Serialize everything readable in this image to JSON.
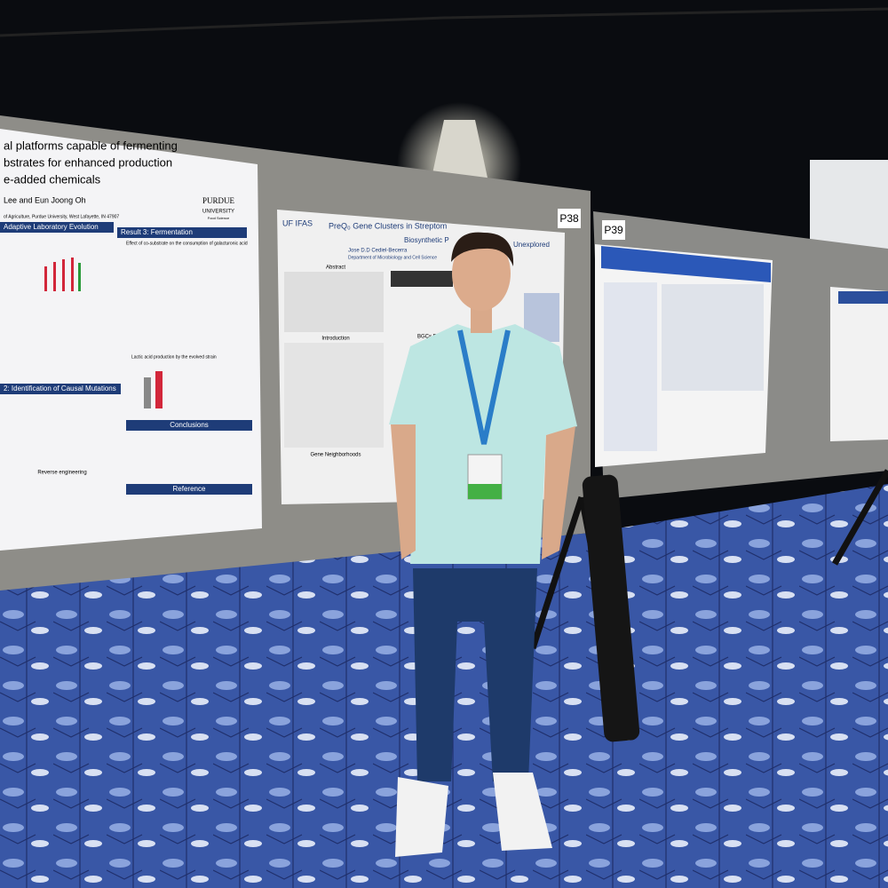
{
  "left_poster": {
    "title_lines": [
      "al platforms capable of fermenting",
      "bstrates for enhanced production",
      "e-added chemicals"
    ],
    "authors": "Lee and Eun Joong Oh",
    "affiliation": "of Agriculture, Purdue University, West Lafayette, IN 47907",
    "logo": "PURDUE",
    "logo_sub": "UNIVERSITY",
    "department": "Food Science",
    "sections": [
      "Adaptive Laboratory Evolution",
      "Result 3: Fermentation",
      "Effect of co-substrate on the consumption of galacturonic acid",
      "Lactic acid production by the evolved strain",
      "2: Identification of Causal Mutations",
      "Conclusions",
      "Reference",
      "Reverse engineering"
    ]
  },
  "middle_poster": {
    "logo": "UF IFAS",
    "title": "PreQ₀ Gene Clusters in Streptom",
    "subtitle": "Biosynthetic P",
    "subtitle_end": "Unexplored",
    "author": "Jose D.D Cediel-Becerra",
    "department": "Department of Microbiology and Cell Science",
    "sections": [
      "Abstract",
      "Introduction",
      "BGCs Delimitation Pipe",
      "Gene Neighborhoods"
    ]
  },
  "board_labels": [
    "P38",
    "P39"
  ]
}
